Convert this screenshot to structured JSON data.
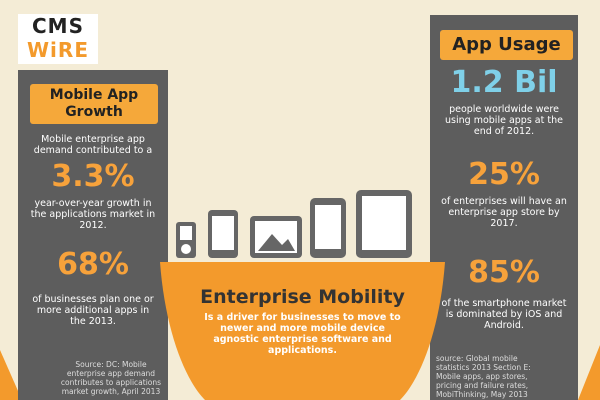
{
  "logo": {
    "line1": "CMS",
    "line2": "WiRE"
  },
  "left_panel": {
    "title": "Mobile App Growth",
    "intro": "Mobile enterprise app demand contributed to a",
    "stats": [
      {
        "value": "3.3%",
        "text": "year-over-year growth in the applications market in 2012."
      },
      {
        "value": "68%",
        "text": "of businesses plan one or more additional apps in the 2013."
      }
    ],
    "source": "Source: DC: Mobile enterprise app demand contributes to applications market growth, April 2013"
  },
  "right_panel": {
    "title": "App Usage",
    "stats": [
      {
        "value": "1.2 Bil",
        "text": "people worldwide were using mobile apps at the end of 2012."
      },
      {
        "value": "25%",
        "text": "of enterprises will have an enterprise app store by 2017."
      },
      {
        "value": "85%",
        "text": "of the smartphone market is dominated by iOS and Android."
      }
    ],
    "source": "source: Global mobile statistics 2013 Section E: Mobile apps, app stores, pricing and failure rates, MobiThinking, May 2013"
  },
  "center": {
    "title": "Enterprise Mobility",
    "text": "Is a driver for businesses to move to newer and more mobile device agnostic enterprise software and applications."
  }
}
